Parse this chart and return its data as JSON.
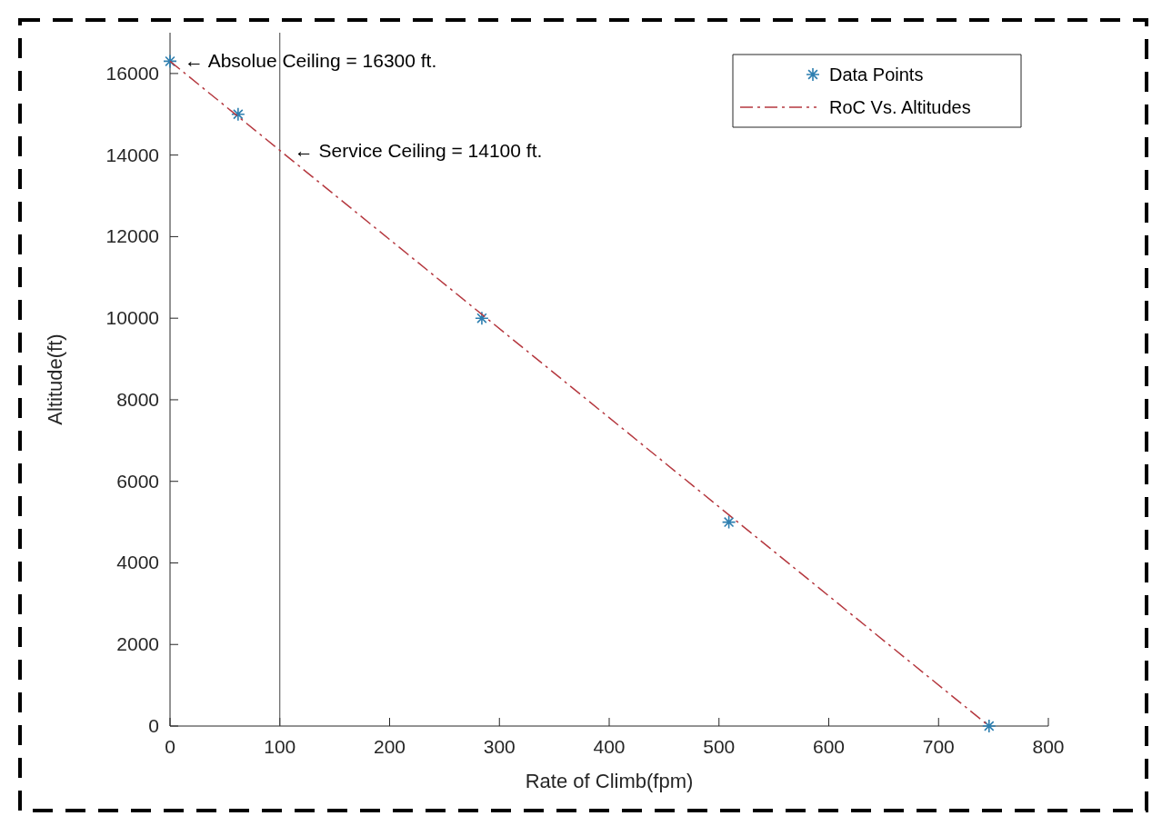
{
  "chart_data": {
    "type": "scatter",
    "xlabel": "Rate of Climb(fpm)",
    "ylabel": "Altitude(ft)",
    "xlim": [
      0,
      800
    ],
    "xticks": [
      0,
      100,
      200,
      300,
      400,
      500,
      600,
      700,
      800
    ],
    "ylim": [
      0,
      17000
    ],
    "yticks": [
      0,
      2000,
      4000,
      6000,
      8000,
      10000,
      12000,
      14000,
      16000
    ],
    "series": [
      {
        "name": "Data Points",
        "color": "#2e7fb0",
        "marker": "cross",
        "x": [
          0,
          62,
          284,
          509,
          746
        ],
        "values": [
          16300,
          15000,
          10000,
          5000,
          0
        ]
      },
      {
        "name": "RoC Vs. Altitudes",
        "type": "line",
        "color": "#b5383f",
        "line_style": "dashed",
        "x": [
          0,
          746
        ],
        "values": [
          16300,
          0
        ]
      }
    ],
    "ref_lines": [
      {
        "axis": "x",
        "value": 100,
        "color": "#444444",
        "line_style": "solid"
      }
    ],
    "annotations": [
      {
        "text": "← Absolue Ceiling = 16300 ft.",
        "x": 0,
        "y": 16300
      },
      {
        "text": "← Service Ceiling = 14100 ft.",
        "x": 100,
        "y": 14100
      }
    ],
    "legend": "top right",
    "grid": false
  }
}
